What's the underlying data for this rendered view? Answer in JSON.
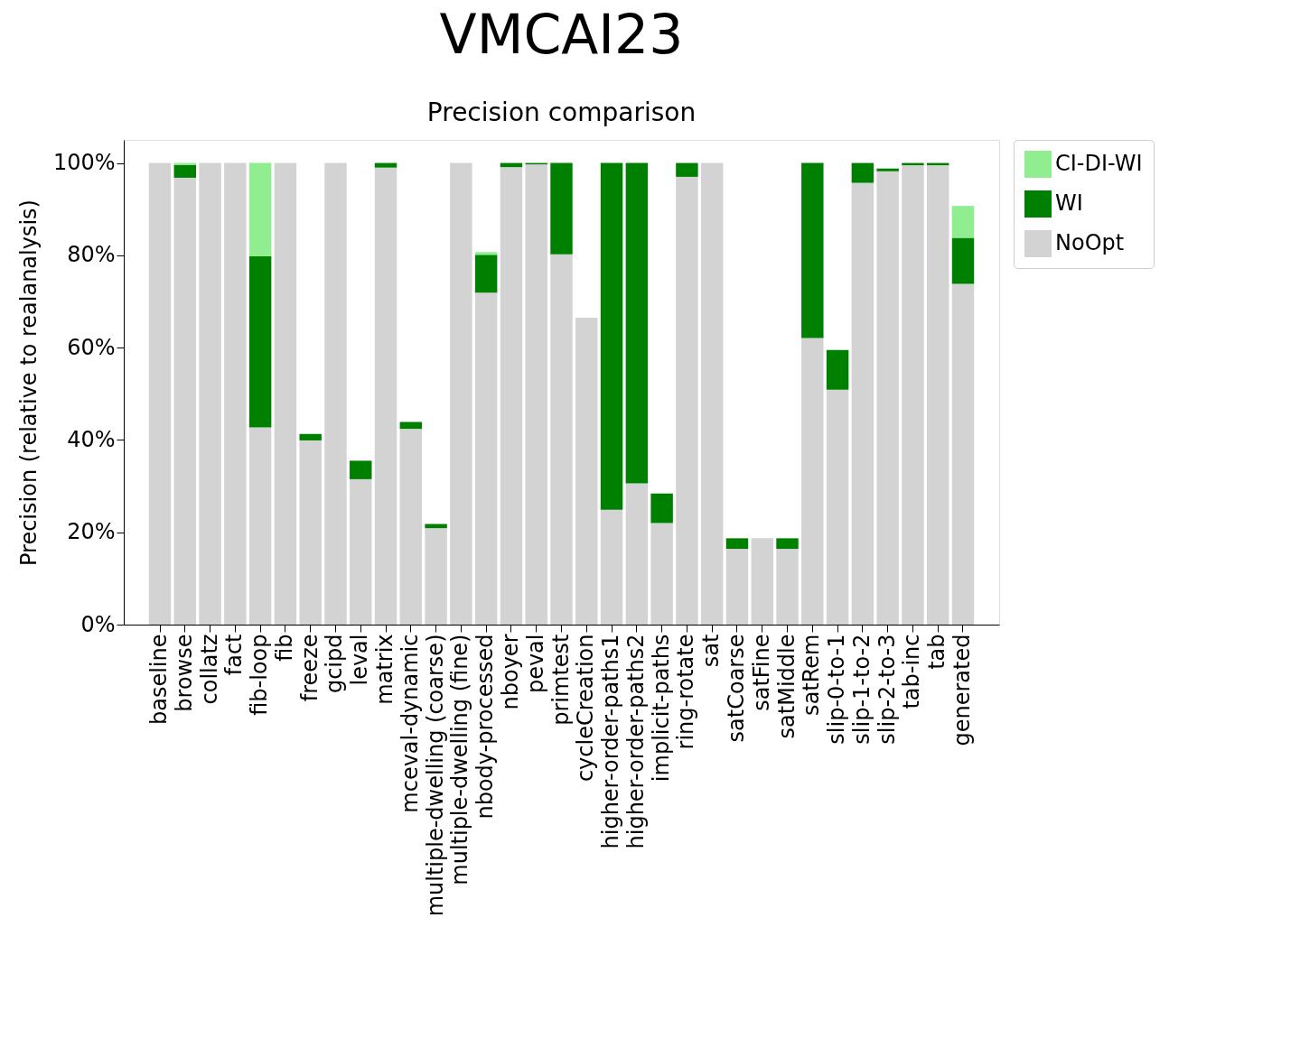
{
  "chart_data": {
    "type": "bar",
    "title": "VMCAI23",
    "subtitle": "Precision comparison",
    "ylabel": "Precision (relative to realanalysis)",
    "categories": [
      "baseline",
      "browse",
      "collatz",
      "fact",
      "fib-loop",
      "fib",
      "freeze",
      "gcipd",
      "leval",
      "matrix",
      "mceval-dynamic",
      "multiple-dwelling (coarse)",
      "multiple-dwelling (fine)",
      "nbody-processed",
      "nboyer",
      "peval",
      "primtest",
      "cycleCreation",
      "higher-order-paths1",
      "higher-order-paths2",
      "implicit-paths",
      "ring-rotate",
      "sat",
      "satCoarse",
      "satFine",
      "satMiddle",
      "satRem",
      "slip-0-to-1",
      "slip-1-to-2",
      "slip-2-to-3",
      "tab-inc",
      "tab",
      "generated"
    ],
    "stacked": true,
    "series": [
      {
        "name": "NoOpt",
        "color": "#d3d3d3",
        "values": [
          100,
          96.8,
          100,
          100,
          42.7,
          100,
          39.9,
          100,
          31.5,
          99.0,
          42.4,
          20.9,
          100,
          71.9,
          99.1,
          99.7,
          80.2,
          66.5,
          24.9,
          30.6,
          22.0,
          97.0,
          100,
          16.4,
          18.7,
          16.4,
          62.1,
          50.9,
          95.7,
          98.2,
          99.5,
          99.5,
          73.8
        ]
      },
      {
        "name": "WI",
        "color": "#008000",
        "values": [
          null,
          2.8,
          null,
          null,
          37.1,
          null,
          1.4,
          null,
          4.0,
          1.0,
          1.5,
          0.9,
          null,
          8.2,
          0.9,
          0.3,
          19.8,
          null,
          75.1,
          69.4,
          6.4,
          3.0,
          null,
          2.3,
          null,
          2.3,
          37.9,
          8.6,
          4.3,
          0.6,
          0.5,
          0.5,
          10.0
        ]
      },
      {
        "name": "CI-DI-WI",
        "color": "#90ee90",
        "values": [
          null,
          0.4,
          null,
          null,
          20.2,
          null,
          null,
          null,
          null,
          null,
          null,
          null,
          null,
          0.6,
          null,
          null,
          null,
          null,
          null,
          null,
          null,
          null,
          null,
          null,
          null,
          null,
          null,
          null,
          null,
          null,
          null,
          null,
          6.9
        ]
      }
    ],
    "ylim": [
      0,
      105
    ],
    "yticks": [
      {
        "value": 0,
        "label": "0%"
      },
      {
        "value": 20,
        "label": "20%"
      },
      {
        "value": 40,
        "label": "40%"
      },
      {
        "value": 60,
        "label": "60%"
      },
      {
        "value": 80,
        "label": "80%"
      },
      {
        "value": 100,
        "label": "100%"
      }
    ],
    "grid": false,
    "legend": "right"
  }
}
